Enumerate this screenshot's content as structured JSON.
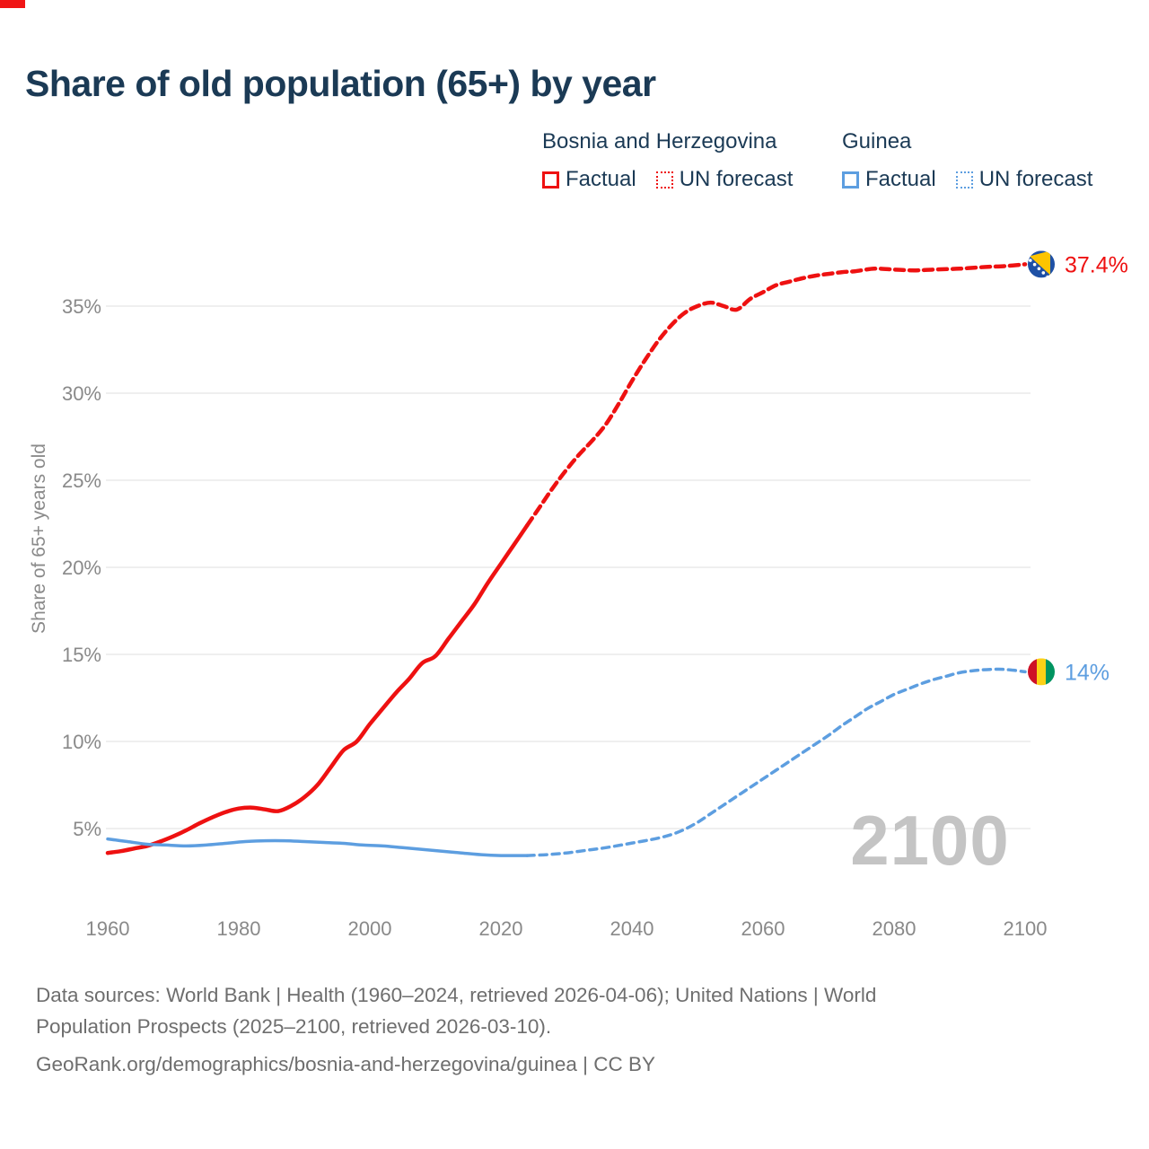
{
  "page": {
    "title": "Share of old population (65+) by year",
    "watermark": "2100"
  },
  "legend": {
    "groups": [
      {
        "country": "Bosnia and Herzegovina",
        "color": "#ee1111",
        "items": [
          {
            "label": "Factual",
            "style": "solid"
          },
          {
            "label": "UN forecast",
            "style": "dotted"
          }
        ]
      },
      {
        "country": "Guinea",
        "color": "#5d9ee0",
        "items": [
          {
            "label": "Factual",
            "style": "solid"
          },
          {
            "label": "UN forecast",
            "style": "dotted"
          }
        ]
      }
    ]
  },
  "chart_data": {
    "type": "line",
    "title": "Share of old population (65+) by year",
    "xlabel": "",
    "ylabel": "Share of 65+ years old",
    "xlim": [
      1960,
      2100
    ],
    "ylim": [
      2.5,
      39
    ],
    "grid": true,
    "x_ticks": [
      1960,
      1980,
      2000,
      2020,
      2040,
      2060,
      2080,
      2100
    ],
    "y_ticks": [
      5,
      10,
      15,
      20,
      25,
      30,
      35
    ],
    "y_tick_suffix": "%",
    "series": [
      {
        "name": "Bosnia and Herzegovina — Factual",
        "color": "#ee1111",
        "stroke_width": 4.5,
        "dash": null,
        "points": [
          [
            1960,
            3.6
          ],
          [
            1962,
            3.7
          ],
          [
            1964,
            3.85
          ],
          [
            1966,
            4.0
          ],
          [
            1968,
            4.25
          ],
          [
            1970,
            4.55
          ],
          [
            1972,
            4.9
          ],
          [
            1974,
            5.3
          ],
          [
            1976,
            5.65
          ],
          [
            1978,
            5.95
          ],
          [
            1980,
            6.15
          ],
          [
            1982,
            6.2
          ],
          [
            1984,
            6.1
          ],
          [
            1986,
            6.0
          ],
          [
            1988,
            6.3
          ],
          [
            1990,
            6.8
          ],
          [
            1992,
            7.5
          ],
          [
            1994,
            8.5
          ],
          [
            1996,
            9.5
          ],
          [
            1998,
            10.0
          ],
          [
            2000,
            11.0
          ],
          [
            2002,
            11.9
          ],
          [
            2004,
            12.8
          ],
          [
            2006,
            13.6
          ],
          [
            2008,
            14.5
          ],
          [
            2010,
            14.9
          ],
          [
            2012,
            15.9
          ],
          [
            2014,
            16.9
          ],
          [
            2016,
            17.9
          ],
          [
            2018,
            19.1
          ],
          [
            2020,
            20.2
          ],
          [
            2022,
            21.3
          ],
          [
            2024,
            22.4
          ]
        ]
      },
      {
        "name": "Bosnia and Herzegovina — UN forecast",
        "color": "#ee1111",
        "stroke_width": 4.5,
        "dash": "10 6",
        "points": [
          [
            2024,
            22.4
          ],
          [
            2026,
            23.5
          ],
          [
            2028,
            24.6
          ],
          [
            2030,
            25.6
          ],
          [
            2032,
            26.5
          ],
          [
            2034,
            27.3
          ],
          [
            2036,
            28.2
          ],
          [
            2038,
            29.4
          ],
          [
            2040,
            30.7
          ],
          [
            2042,
            31.9
          ],
          [
            2044,
            33.0
          ],
          [
            2046,
            33.9
          ],
          [
            2048,
            34.6
          ],
          [
            2050,
            35.0
          ],
          [
            2052,
            35.2
          ],
          [
            2054,
            35.0
          ],
          [
            2056,
            34.8
          ],
          [
            2058,
            35.4
          ],
          [
            2060,
            35.8
          ],
          [
            2062,
            36.2
          ],
          [
            2064,
            36.4
          ],
          [
            2066,
            36.6
          ],
          [
            2068,
            36.75
          ],
          [
            2070,
            36.85
          ],
          [
            2072,
            36.95
          ],
          [
            2074,
            37.0
          ],
          [
            2077,
            37.15
          ],
          [
            2080,
            37.1
          ],
          [
            2083,
            37.05
          ],
          [
            2086,
            37.1
          ],
          [
            2090,
            37.15
          ],
          [
            2094,
            37.25
          ],
          [
            2097,
            37.3
          ],
          [
            2100,
            37.4
          ]
        ]
      },
      {
        "name": "Guinea — Factual",
        "color": "#5d9ee0",
        "stroke_width": 3.5,
        "dash": null,
        "points": [
          [
            1960,
            4.4
          ],
          [
            1963,
            4.25
          ],
          [
            1966,
            4.1
          ],
          [
            1969,
            4.05
          ],
          [
            1972,
            4.0
          ],
          [
            1975,
            4.05
          ],
          [
            1978,
            4.15
          ],
          [
            1981,
            4.25
          ],
          [
            1984,
            4.3
          ],
          [
            1987,
            4.3
          ],
          [
            1990,
            4.25
          ],
          [
            1993,
            4.2
          ],
          [
            1996,
            4.15
          ],
          [
            1999,
            4.05
          ],
          [
            2002,
            4.0
          ],
          [
            2005,
            3.9
          ],
          [
            2008,
            3.8
          ],
          [
            2011,
            3.7
          ],
          [
            2014,
            3.6
          ],
          [
            2017,
            3.5
          ],
          [
            2020,
            3.45
          ],
          [
            2024,
            3.45
          ]
        ]
      },
      {
        "name": "Guinea — UN forecast",
        "color": "#5d9ee0",
        "stroke_width": 3.5,
        "dash": "8 6",
        "points": [
          [
            2024,
            3.45
          ],
          [
            2027,
            3.5
          ],
          [
            2030,
            3.6
          ],
          [
            2033,
            3.75
          ],
          [
            2036,
            3.9
          ],
          [
            2039,
            4.1
          ],
          [
            2042,
            4.3
          ],
          [
            2044,
            4.45
          ],
          [
            2046,
            4.65
          ],
          [
            2048,
            4.95
          ],
          [
            2050,
            5.35
          ],
          [
            2052,
            5.85
          ],
          [
            2054,
            6.35
          ],
          [
            2056,
            6.85
          ],
          [
            2058,
            7.35
          ],
          [
            2060,
            7.85
          ],
          [
            2062,
            8.35
          ],
          [
            2064,
            8.85
          ],
          [
            2066,
            9.35
          ],
          [
            2068,
            9.85
          ],
          [
            2070,
            10.35
          ],
          [
            2072,
            10.9
          ],
          [
            2074,
            11.4
          ],
          [
            2076,
            11.9
          ],
          [
            2078,
            12.3
          ],
          [
            2080,
            12.7
          ],
          [
            2082,
            13.0
          ],
          [
            2084,
            13.3
          ],
          [
            2086,
            13.55
          ],
          [
            2088,
            13.75
          ],
          [
            2090,
            13.95
          ],
          [
            2093,
            14.1
          ],
          [
            2096,
            14.15
          ],
          [
            2098,
            14.1
          ],
          [
            2100,
            14.0
          ]
        ]
      }
    ],
    "end_labels": [
      {
        "series": "Bosnia and Herzegovina",
        "label": "37.4%",
        "value": 37.4,
        "flag": "bosnia-and-herzegovina"
      },
      {
        "series": "Guinea",
        "label": "14%",
        "value": 14,
        "flag": "guinea"
      }
    ],
    "legend_position": "top-right",
    "watermark": "2100"
  },
  "colors": {
    "bosnia_red": "#ee1111",
    "guinea_blue": "#5d9ee0",
    "title_navy": "#1b3a55",
    "axis_text": "#898989",
    "gridline": "#e5e5e5",
    "footer_text": "#6e6e6e",
    "watermark_gray": "#c4c4c4",
    "flag_bosnia_blue": "#1e50a5",
    "flag_bosnia_yellow": "#fdc400",
    "flag_guinea_red": "#ce1126",
    "flag_guinea_yellow": "#fcd116",
    "flag_guinea_green": "#009460"
  },
  "footer": {
    "line1": "Data sources: World Bank | Health (1960–2024, retrieved 2026-04-06); United Nations | World",
    "line2": "Population Prospects (2025–2100, retrieved 2026-03-10).",
    "line3": "GeoRank.org/demographics/bosnia-and-herzegovina/guinea | CC BY"
  }
}
